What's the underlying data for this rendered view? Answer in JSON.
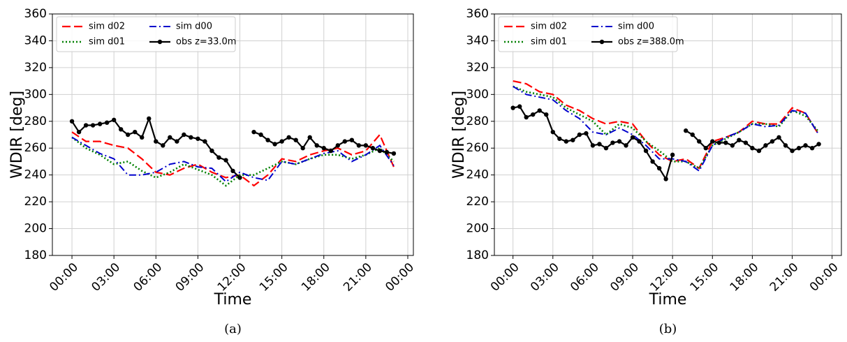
{
  "chart_data": [
    {
      "type": "line",
      "caption": "(a)",
      "xlabel": "Time",
      "ylabel": "WDIR [deg]",
      "grid": true,
      "legend": "upper left",
      "xlim": [
        -1.4,
        24.4
      ],
      "ylim": [
        180,
        360
      ],
      "xticks": [
        {
          "value": 0,
          "label": "00:00"
        },
        {
          "value": 3,
          "label": "03:00"
        },
        {
          "value": 6,
          "label": "06:00"
        },
        {
          "value": 9,
          "label": "09:00"
        },
        {
          "value": 12,
          "label": "12:00"
        },
        {
          "value": 15,
          "label": "15:00"
        },
        {
          "value": 18,
          "label": "18:00"
        },
        {
          "value": 21,
          "label": "21:00"
        },
        {
          "value": 24,
          "label": "00:00"
        }
      ],
      "yticks": [
        180,
        200,
        220,
        240,
        260,
        280,
        300,
        320,
        340,
        360
      ],
      "x": [
        0,
        1,
        2,
        3,
        4,
        5,
        6,
        7,
        8,
        9,
        10,
        11,
        12,
        13,
        14,
        15,
        16,
        17,
        18,
        19,
        20,
        21,
        22,
        23
      ],
      "series": [
        {
          "name": "sim d02",
          "color": "#ff0000",
          "values": [
            272,
            265,
            265,
            262,
            260,
            252,
            242,
            240,
            245,
            248,
            242,
            238,
            240,
            232,
            240,
            252,
            250,
            255,
            258,
            260,
            255,
            258,
            270,
            246
          ]
        },
        {
          "name": "sim d01",
          "color": "#008000",
          "values": [
            268,
            260,
            255,
            248,
            250,
            243,
            238,
            242,
            248,
            244,
            240,
            232,
            240,
            240,
            245,
            250,
            248,
            252,
            255,
            255,
            252,
            255,
            260,
            250
          ]
        },
        {
          "name": "sim d00",
          "color": "#0000cc",
          "values": [
            268,
            262,
            256,
            252,
            240,
            240,
            242,
            248,
            250,
            246,
            245,
            235,
            242,
            238,
            236,
            250,
            248,
            252,
            256,
            258,
            250,
            255,
            262,
            247
          ]
        },
        {
          "name": "obs z=33.0m",
          "color": "#000000",
          "x": [
            0,
            0.5,
            1,
            1.5,
            2,
            2.5,
            3,
            3.5,
            4,
            4.5,
            5,
            5.5,
            6,
            6.5,
            7,
            7.5,
            8,
            8.5,
            9,
            9.5,
            10,
            10.5,
            11,
            11.5,
            12,
            12.5,
            13,
            13.5,
            14,
            14.5,
            15,
            15.5,
            16,
            16.5,
            17,
            17.5,
            18,
            18.5,
            19,
            19.5,
            20,
            20.5,
            21,
            21.5,
            22,
            22.5,
            23
          ],
          "values": [
            280,
            272,
            277,
            277,
            278,
            279,
            281,
            274,
            270,
            272,
            268,
            282,
            265,
            262,
            268,
            265,
            270,
            268,
            267,
            265,
            258,
            253,
            251,
            243,
            238,
            null,
            272,
            270,
            266,
            263,
            265,
            268,
            266,
            260,
            268,
            262,
            260,
            258,
            262,
            265,
            266,
            262,
            262,
            260,
            258,
            257,
            256
          ]
        }
      ]
    },
    {
      "type": "line",
      "caption": "(b)",
      "xlabel": "Time",
      "ylabel": "WDIR [deg]",
      "grid": true,
      "legend": "upper left",
      "xlim": [
        -1.4,
        24.7
      ],
      "ylim": [
        180,
        360
      ],
      "xticks": [
        {
          "value": 0,
          "label": "00:00"
        },
        {
          "value": 3,
          "label": "03:00"
        },
        {
          "value": 6,
          "label": "06:00"
        },
        {
          "value": 9,
          "label": "09:00"
        },
        {
          "value": 12,
          "label": "12:00"
        },
        {
          "value": 15,
          "label": "15:00"
        },
        {
          "value": 18,
          "label": "18:00"
        },
        {
          "value": 21,
          "label": "21:00"
        },
        {
          "value": 24,
          "label": "00:00"
        }
      ],
      "yticks": [
        180,
        200,
        220,
        240,
        260,
        280,
        300,
        320,
        340,
        360
      ],
      "x": [
        0,
        1,
        2,
        3,
        4,
        5,
        6,
        7,
        8,
        9,
        10,
        11,
        12,
        13,
        14,
        15,
        16,
        17,
        18,
        19,
        20,
        21,
        22,
        23
      ],
      "series": [
        {
          "name": "sim d02",
          "color": "#ff0000",
          "values": [
            310,
            308,
            302,
            300,
            292,
            288,
            282,
            278,
            280,
            278,
            265,
            255,
            250,
            252,
            245,
            265,
            268,
            272,
            280,
            278,
            278,
            290,
            286,
            270
          ]
        },
        {
          "name": "sim d01",
          "color": "#008000",
          "values": [
            306,
            302,
            300,
            298,
            290,
            285,
            280,
            270,
            278,
            275,
            265,
            258,
            250,
            250,
            245,
            262,
            267,
            272,
            278,
            278,
            276,
            288,
            284,
            272
          ]
        },
        {
          "name": "sim d00",
          "color": "#0000cc",
          "values": [
            306,
            300,
            298,
            296,
            288,
            282,
            272,
            270,
            275,
            270,
            262,
            252,
            252,
            250,
            243,
            262,
            268,
            272,
            278,
            276,
            277,
            288,
            286,
            270
          ]
        },
        {
          "name": "obs z=388.0m",
          "color": "#000000",
          "x": [
            0,
            0.5,
            1,
            1.5,
            2,
            2.5,
            3,
            3.5,
            4,
            4.5,
            5,
            5.5,
            6,
            6.5,
            7,
            7.5,
            8,
            8.5,
            9,
            9.5,
            10,
            10.5,
            11,
            11.5,
            12,
            12.5,
            13,
            13.5,
            14,
            14.5,
            15,
            15.5,
            16,
            16.5,
            17,
            17.5,
            18,
            18.5,
            19,
            19.5,
            20,
            20.5,
            21,
            21.5,
            22,
            22.5,
            23
          ],
          "values": [
            290,
            291,
            283,
            285,
            288,
            285,
            272,
            267,
            265,
            266,
            270,
            271,
            262,
            263,
            260,
            264,
            265,
            262,
            268,
            265,
            258,
            250,
            245,
            237,
            255,
            null,
            273,
            270,
            265,
            260,
            265,
            264,
            264,
            262,
            266,
            264,
            260,
            258,
            262,
            265,
            268,
            262,
            258,
            260,
            262,
            260,
            263
          ]
        }
      ]
    }
  ]
}
